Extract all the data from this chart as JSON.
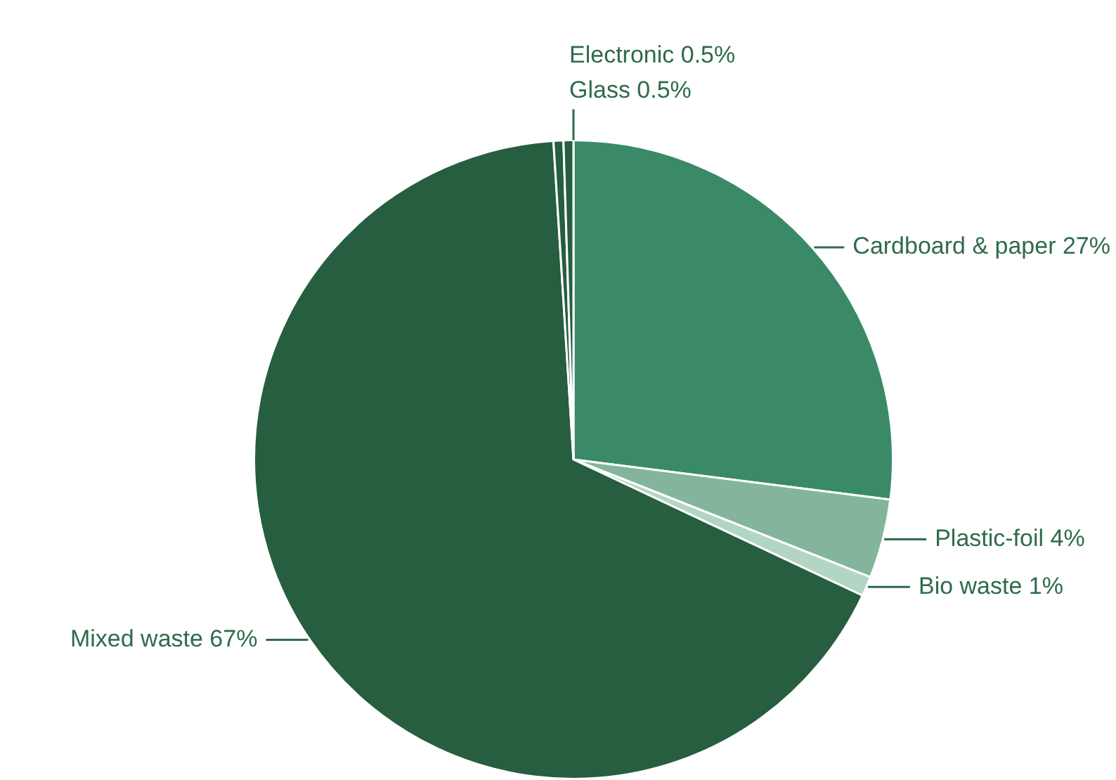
{
  "chart_data": {
    "type": "pie",
    "categories": [
      "Cardboard & paper",
      "Plastic-foil",
      "Bio waste",
      "Mixed waste",
      "Glass",
      "Electronic"
    ],
    "values": [
      27,
      4,
      1,
      67,
      0.5,
      0.5
    ],
    "value_labels": [
      "27%",
      "4%",
      "1%",
      "67%",
      "0.5%",
      "0.5%"
    ],
    "colors": [
      "#3a8a67",
      "#84b59c",
      "#b3d6c4",
      "#265e3f",
      "#265e3f",
      "#265e3f"
    ]
  }
}
